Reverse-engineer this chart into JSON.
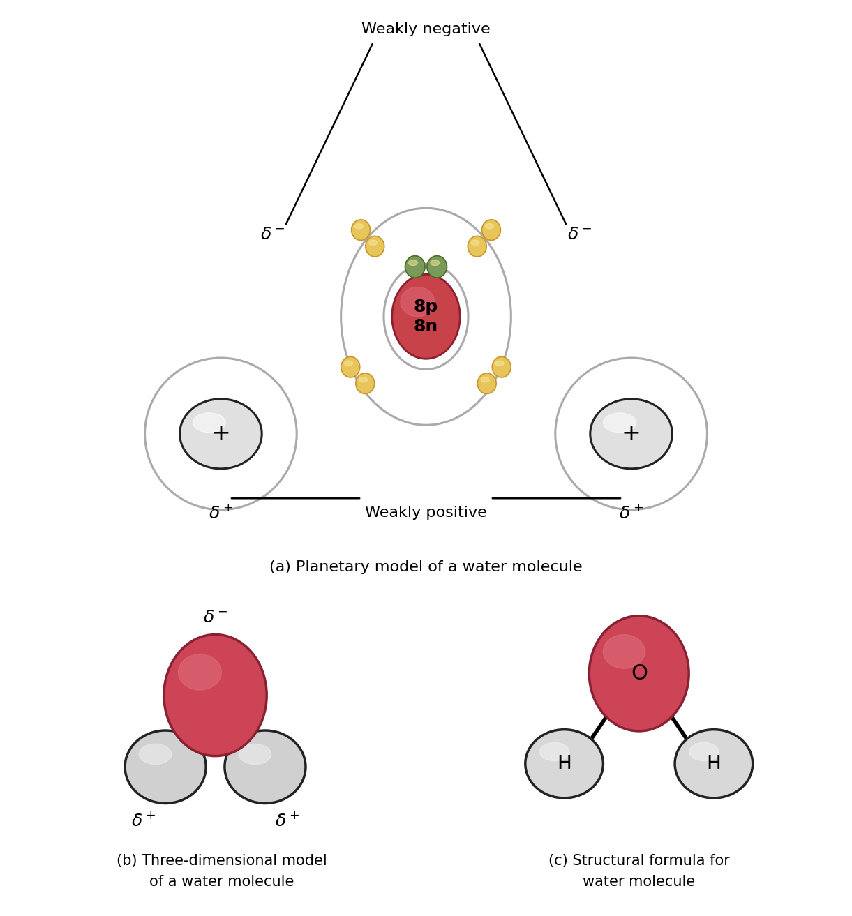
{
  "bg_color": "#ffffff",
  "title_a": "(a) Planetary model of a water molecule",
  "title_b": "(b) Three-dimensional model\nof a water molecule",
  "title_c": "(c) Structural formula for\nwater molecule",
  "weakly_negative": "Weakly negative",
  "weakly_positive": "Weakly positive",
  "nucleus_color": "#c8424a",
  "nucleus_highlight": "#e06878",
  "nucleus_edge": "#8a2030",
  "nucleus_text": "8p\n8n",
  "electron_yellow": "#e8c55a",
  "electron_yellow_edge": "#c8952a",
  "electron_green": "#7a9a5a",
  "electron_green_edge": "#4a6a2a",
  "orbit_color": "#aaaaaa",
  "h_proton_color": "#e0e0e0",
  "h_proton_edge": "#222222",
  "oxygen_red": "#cc4455",
  "oxygen_pink": "#e07080",
  "oxygen_edge": "#882233",
  "h_sphere_color": "#d8d8d8",
  "h_sphere_edge": "#333333",
  "line_color": "#111111",
  "delta_fontsize": 18,
  "label_fontsize": 16,
  "title_fontsize": 16
}
